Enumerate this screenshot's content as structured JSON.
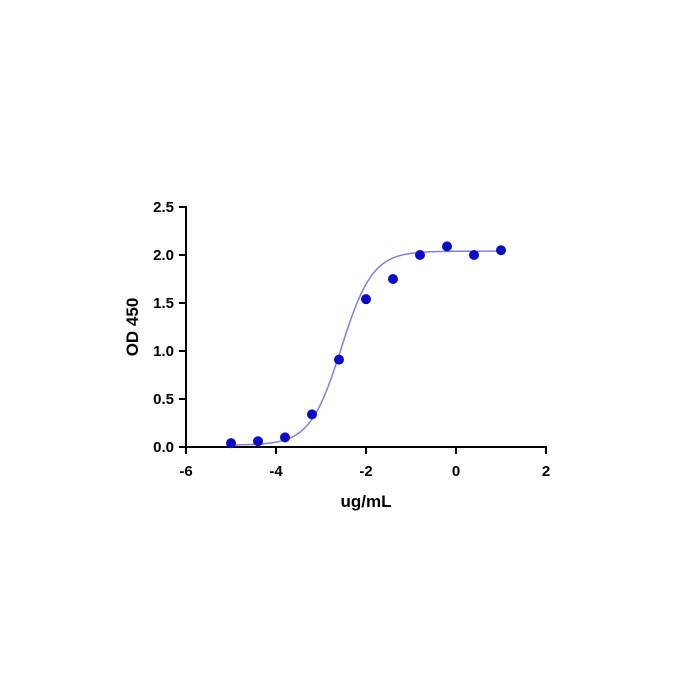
{
  "chart_data": {
    "type": "scatter",
    "title": "",
    "xlabel": "ug/mL",
    "ylabel": "OD 450",
    "xlim": [
      -6,
      2
    ],
    "ylim": [
      0,
      2.5
    ],
    "xticks": [
      -6,
      -4,
      -2,
      0,
      2
    ],
    "xtick_labels": [
      "-6",
      "-4",
      "-2",
      "0",
      "2"
    ],
    "yticks": [
      0.0,
      0.5,
      1.0,
      1.5,
      2.0,
      2.5
    ],
    "ytick_labels": [
      "0.0",
      "0.5",
      "1.0",
      "1.5",
      "2.0",
      "2.5"
    ],
    "grid": false,
    "points": {
      "x": [
        -5.0,
        -4.4,
        -3.8,
        -3.2,
        -2.6,
        -2.0,
        -1.4,
        -0.8,
        -0.2,
        0.4,
        1.0
      ],
      "y": [
        0.04,
        0.06,
        0.1,
        0.34,
        0.91,
        1.54,
        1.75,
        2.0,
        2.09,
        2.0,
        2.05
      ]
    },
    "fit_curve": {
      "model": "4PL",
      "bottom": 0.02,
      "top": 2.04,
      "logEC50": -2.55,
      "hill": 1.25
    },
    "colors": {
      "points": "#0a0ac8",
      "curve": "#8080e0",
      "axes": "#000000"
    }
  }
}
